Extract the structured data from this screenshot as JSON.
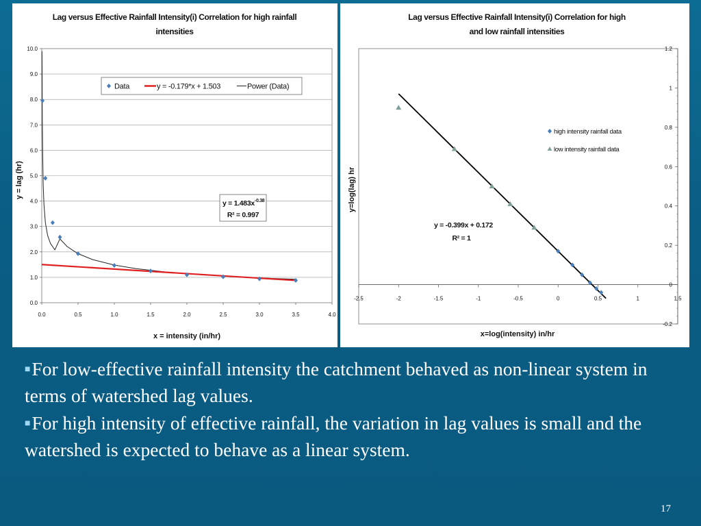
{
  "chart_data": [
    {
      "type": "scatter",
      "title_lines": [
        "Lag versus Effective Rainfall Intensity(i) Correlation  for high rainfall",
        "intensities"
      ],
      "xlabel": "x = intensity (in/hr)",
      "ylabel": "y = lag (hr)",
      "xlim": [
        0,
        4
      ],
      "ylim": [
        0,
        10
      ],
      "x_ticks": [
        "0.0",
        "0.5",
        "1.0",
        "1.5",
        "2.0",
        "2.5",
        "3.0",
        "3.5",
        "4.0"
      ],
      "y_ticks": [
        "0.0",
        "1.0",
        "2.0",
        "3.0",
        "4.0",
        "5.0",
        "6.0",
        "7.0",
        "8.0",
        "9.0",
        "10.0"
      ],
      "grid": true,
      "legend_position": "top-right",
      "series": [
        {
          "name": "Data",
          "kind": "points",
          "color": "#4a7ebb",
          "x": [
            0.01,
            0.05,
            0.15,
            0.25,
            0.5,
            1.0,
            1.5,
            2.0,
            2.5,
            3.0,
            3.5
          ],
          "y": [
            7.95,
            4.9,
            3.15,
            2.58,
            1.93,
            1.47,
            1.25,
            1.1,
            1.02,
            0.94,
            0.88
          ]
        },
        {
          "name": "y = -0.179*x + 1.503",
          "kind": "line",
          "color": "#e02020",
          "x": [
            0,
            3.5
          ],
          "y": [
            1.503,
            0.877
          ]
        },
        {
          "name": "Power (Data)",
          "kind": "trend",
          "color": "#222222",
          "formula": "y = 1.483x^-0.38"
        }
      ],
      "annotation": {
        "equation_base": "y = 1.483x",
        "equation_exp": "-0.38",
        "r2": "R² = 0.997"
      }
    },
    {
      "type": "scatter",
      "title_lines": [
        "Lag versus Effective Rainfall Intensity(i) Correlation  for high",
        "and low rainfall intensities"
      ],
      "xlabel": "x=log(intensity)  in/hr",
      "ylabel": "y=log(lag)  hr",
      "xlim": [
        -2.5,
        1.5
      ],
      "ylim": [
        -0.2,
        1.2
      ],
      "x_ticks": [
        "-2.5",
        "-2",
        "-1.5",
        "-1",
        "-0.5",
        "0",
        "0.5",
        "1",
        "1.5"
      ],
      "y_ticks": [
        "-0.2",
        "0",
        "0.2",
        "0.4",
        "0.6",
        "0.8",
        "1",
        "1.2"
      ],
      "grid": false,
      "legend_position": "right",
      "series": [
        {
          "name": "high intensity rainfall data",
          "kind": "points",
          "marker": "diamond",
          "color": "#4a7ebb",
          "x": [
            0,
            0.18,
            0.3,
            0.4,
            0.48,
            0.54
          ],
          "y": [
            0.17,
            0.1,
            0.05,
            0.01,
            -0.02,
            -0.04
          ]
        },
        {
          "name": "low intensity rainfall data",
          "kind": "points",
          "marker": "triangle",
          "color": "#7f9f9a",
          "x": [
            -2.0,
            -1.3,
            -0.83,
            -0.6,
            -0.3
          ],
          "y": [
            0.9,
            0.69,
            0.5,
            0.41,
            0.29
          ]
        },
        {
          "name": "",
          "kind": "line",
          "color": "#000000",
          "x": [
            -2.0,
            0.6
          ],
          "y": [
            0.97,
            -0.07
          ]
        }
      ],
      "annotation": {
        "equation": "y = -0.399x + 0.172",
        "r2": "R² = 1"
      }
    }
  ],
  "bullets": [
    "For low-effective rainfall intensity the catchment behaved as non-linear system in terms of watershed lag values.",
    "For high intensity of effective rainfall, the variation in lag values is small and the watershed is expected to behave as a linear system."
  ],
  "bullet_mark": "■",
  "page_number": "17",
  "colors": {
    "background": "#0a5a80",
    "panel": "#ffffff",
    "text": "#ffffff"
  }
}
